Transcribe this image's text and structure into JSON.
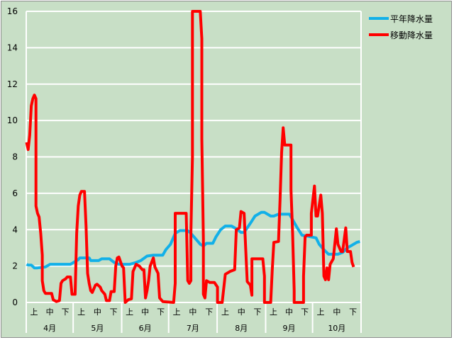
{
  "chart_data": {
    "type": "line",
    "title": "",
    "xlabel": "",
    "ylabel": "",
    "ylim": [
      0,
      16
    ],
    "yticks": [
      "0",
      "2",
      "4",
      "6",
      "8",
      "10",
      "12",
      "14",
      "16"
    ],
    "grid": true,
    "legend_position": "top-right",
    "background_color": "#c8dfc6",
    "x_sublabels": [
      "上",
      "中",
      "下"
    ],
    "months": [
      {
        "label": "4月",
        "days": 30
      },
      {
        "label": "5月",
        "days": 31
      },
      {
        "label": "6月",
        "days": 30
      },
      {
        "label": "7月",
        "days": 31
      },
      {
        "label": "8月",
        "days": 31
      },
      {
        "label": "9月",
        "days": 30
      },
      {
        "label": "10月",
        "days": 31
      }
    ],
    "series": [
      {
        "name": "平年降水量",
        "color": "#12b0e8",
        "points": [
          [
            "4/1",
            2.1
          ],
          [
            "4/2",
            2.05
          ],
          [
            "4/4",
            2.05
          ],
          [
            "4/6",
            1.9
          ],
          [
            "4/8",
            1.9
          ],
          [
            "4/13",
            1.95
          ],
          [
            "4/14",
            2.0
          ],
          [
            "4/16",
            2.1
          ],
          [
            "4/18",
            2.1
          ],
          [
            "4/29",
            2.1
          ],
          [
            "5/1",
            2.2
          ],
          [
            "5/4",
            2.35
          ],
          [
            "5/5",
            2.45
          ],
          [
            "5/11",
            2.45
          ],
          [
            "5/12",
            2.3
          ],
          [
            "5/17",
            2.3
          ],
          [
            "5/19",
            2.4
          ],
          [
            "5/24",
            2.4
          ],
          [
            "5/27",
            2.2
          ],
          [
            "5/30",
            2.1
          ],
          [
            "6/3",
            2.1
          ],
          [
            "6/6",
            2.1
          ],
          [
            "6/10",
            2.2
          ],
          [
            "6/13",
            2.3
          ],
          [
            "6/17",
            2.55
          ],
          [
            "6/21",
            2.6
          ],
          [
            "6/27",
            2.6
          ],
          [
            "6/29",
            2.9
          ],
          [
            "7/2",
            3.2
          ],
          [
            "7/5",
            3.8
          ],
          [
            "7/8",
            3.95
          ],
          [
            "7/13",
            3.95
          ],
          [
            "7/15",
            3.8
          ],
          [
            "7/18",
            3.5
          ],
          [
            "7/21",
            3.2
          ],
          [
            "7/23",
            3.1
          ],
          [
            "7/25",
            3.25
          ],
          [
            "7/29",
            3.25
          ],
          [
            "7/31",
            3.6
          ],
          [
            "8/3",
            4.0
          ],
          [
            "8/6",
            4.2
          ],
          [
            "8/10",
            4.2
          ],
          [
            "8/13",
            4.05
          ],
          [
            "8/16",
            3.85
          ],
          [
            "8/18",
            3.85
          ],
          [
            "8/22",
            4.35
          ],
          [
            "8/25",
            4.75
          ],
          [
            "8/29",
            4.95
          ],
          [
            "8/31",
            4.95
          ],
          [
            "9/4",
            4.75
          ],
          [
            "9/6",
            4.75
          ],
          [
            "9/9",
            4.85
          ],
          [
            "9/16",
            4.85
          ],
          [
            "9/18",
            4.55
          ],
          [
            "9/21",
            4.1
          ],
          [
            "9/24",
            3.7
          ],
          [
            "9/27",
            3.65
          ],
          [
            "10/3",
            3.55
          ],
          [
            "10/5",
            3.2
          ],
          [
            "10/8",
            2.9
          ],
          [
            "10/11",
            2.65
          ],
          [
            "10/17",
            2.65
          ],
          [
            "10/20",
            2.75
          ],
          [
            "10/23",
            3.0
          ],
          [
            "10/26",
            3.15
          ],
          [
            "10/29",
            3.3
          ],
          [
            "10/31",
            3.35
          ]
        ]
      },
      {
        "name": "移動降水量",
        "color": "#ff0000",
        "points": [
          [
            "4/1",
            8.8
          ],
          [
            "4/2",
            8.4
          ],
          [
            "4/3",
            9.2
          ],
          [
            "4/4",
            10.8
          ],
          [
            "4/5",
            11.2
          ],
          [
            "4/6",
            11.4
          ],
          [
            "4/7",
            11.2
          ],
          [
            "4/7",
            8.2
          ],
          [
            "4/7",
            5.3
          ],
          [
            "4/8",
            4.9
          ],
          [
            "4/9",
            4.7
          ],
          [
            "4/10",
            3.8
          ],
          [
            "4/11",
            2.6
          ],
          [
            "4/11",
            1.2
          ],
          [
            "4/12",
            0.65
          ],
          [
            "4/13",
            0.5
          ],
          [
            "4/17",
            0.5
          ],
          [
            "4/18",
            0.15
          ],
          [
            "4/20",
            0.05
          ],
          [
            "4/22",
            0.1
          ],
          [
            "4/23",
            1.05
          ],
          [
            "4/24",
            1.2
          ],
          [
            "4/26",
            1.3
          ],
          [
            "4/27",
            1.4
          ],
          [
            "4/29",
            1.4
          ],
          [
            "4/30",
            0.45
          ],
          [
            "5/2",
            0.45
          ],
          [
            "5/3",
            3.8
          ],
          [
            "5/4",
            5.3
          ],
          [
            "5/5",
            5.9
          ],
          [
            "5/6",
            6.1
          ],
          [
            "5/8",
            6.1
          ],
          [
            "5/9",
            4.2
          ],
          [
            "5/10",
            1.6
          ],
          [
            "5/11",
            1.05
          ],
          [
            "5/12",
            0.65
          ],
          [
            "5/13",
            0.55
          ],
          [
            "5/15",
            0.95
          ],
          [
            "5/16",
            1.0
          ],
          [
            "5/18",
            0.85
          ],
          [
            "5/19",
            0.65
          ],
          [
            "5/21",
            0.45
          ],
          [
            "5/22",
            0.1
          ],
          [
            "5/24",
            0.1
          ],
          [
            "5/25",
            0.6
          ],
          [
            "5/27",
            0.6
          ],
          [
            "5/28",
            2.0
          ],
          [
            "5/29",
            2.45
          ],
          [
            "5/30",
            2.5
          ],
          [
            "6/1",
            2.0
          ],
          [
            "6/2",
            1.9
          ],
          [
            "6/3",
            0
          ],
          [
            "6/5",
            0.15
          ],
          [
            "6/7",
            0.2
          ],
          [
            "6/8",
            1.7
          ],
          [
            "6/10",
            2.1
          ],
          [
            "6/12",
            2.0
          ],
          [
            "6/14",
            1.8
          ],
          [
            "6/15",
            1.8
          ],
          [
            "6/16",
            0.25
          ],
          [
            "6/17",
            0.65
          ],
          [
            "6/18",
            1.2
          ],
          [
            "6/19",
            2.0
          ],
          [
            "6/21",
            2.45
          ],
          [
            "6/22",
            1.95
          ],
          [
            "6/24",
            1.6
          ],
          [
            "6/25",
            0.25
          ],
          [
            "6/27",
            0.05
          ],
          [
            "7/4",
            0
          ],
          [
            "7/5",
            1.05
          ],
          [
            "7/5",
            4.9
          ],
          [
            "7/12",
            4.9
          ],
          [
            "7/13",
            1.2
          ],
          [
            "7/14",
            1.05
          ],
          [
            "7/15",
            1.2
          ],
          [
            "7/15",
            3.8
          ],
          [
            "7/16",
            8.0
          ],
          [
            "7/16",
            16
          ],
          [
            "7/21",
            16
          ],
          [
            "7/22",
            14.5
          ],
          [
            "7/22",
            9.0
          ],
          [
            "7/23",
            3.5
          ],
          [
            "7/23",
            0.45
          ],
          [
            "7/24",
            0.25
          ],
          [
            "7/25",
            1.2
          ],
          [
            "7/27",
            1.1
          ],
          [
            "7/30",
            1.1
          ],
          [
            "8/1",
            0.85
          ],
          [
            "8/1",
            0
          ],
          [
            "8/4",
            0
          ],
          [
            "8/6",
            1.55
          ],
          [
            "8/9",
            1.7
          ],
          [
            "8/12",
            1.8
          ],
          [
            "8/13",
            4.0
          ],
          [
            "8/15",
            4.1
          ],
          [
            "8/16",
            5.0
          ],
          [
            "8/18",
            4.9
          ],
          [
            "8/19",
            3.0
          ],
          [
            "8/20",
            1.15
          ],
          [
            "8/22",
            0.95
          ],
          [
            "8/23",
            0.4
          ],
          [
            "8/23",
            2.4
          ],
          [
            "8/30",
            2.4
          ],
          [
            "8/31",
            1.45
          ],
          [
            "8/31",
            0
          ],
          [
            "9/4",
            0
          ],
          [
            "9/5",
            1.8
          ],
          [
            "9/6",
            3.3
          ],
          [
            "9/9",
            3.35
          ],
          [
            "9/10",
            5.65
          ],
          [
            "9/11",
            8.25
          ],
          [
            "9/12",
            9.6
          ],
          [
            "9/13",
            8.65
          ],
          [
            "9/17",
            8.65
          ],
          [
            "9/17",
            6.2
          ],
          [
            "9/18",
            3.8
          ],
          [
            "9/19",
            0.65
          ],
          [
            "9/19",
            0
          ],
          [
            "9/25",
            0
          ],
          [
            "9/25",
            1.45
          ],
          [
            "9/26",
            3.6
          ],
          [
            "9/27",
            3.7
          ],
          [
            "9/30",
            3.7
          ],
          [
            "9/30",
            4.9
          ],
          [
            "10/2",
            6.4
          ],
          [
            "10/3",
            4.75
          ],
          [
            "10/4",
            4.75
          ],
          [
            "10/6",
            5.9
          ],
          [
            "10/7",
            4.9
          ],
          [
            "10/8",
            1.45
          ],
          [
            "10/9",
            1.25
          ],
          [
            "10/10",
            1.9
          ],
          [
            "10/11",
            1.25
          ],
          [
            "10/12",
            2.1
          ],
          [
            "10/14",
            2.4
          ],
          [
            "10/16",
            4.05
          ],
          [
            "10/17",
            3.2
          ],
          [
            "10/19",
            2.8
          ],
          [
            "10/20",
            2.8
          ],
          [
            "10/22",
            4.1
          ],
          [
            "10/23",
            2.8
          ],
          [
            "10/25",
            2.8
          ],
          [
            "10/26",
            2.2
          ],
          [
            "10/27",
            1.95
          ]
        ]
      }
    ]
  }
}
